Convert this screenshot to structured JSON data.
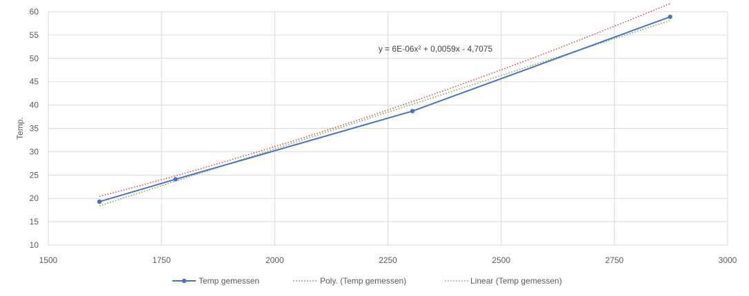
{
  "chart_data": {
    "type": "scatter",
    "title": "",
    "xlabel": "",
    "ylabel": "Temp.",
    "xlim": [
      1500,
      3000
    ],
    "ylim": [
      10,
      60
    ],
    "xticks": [
      1500,
      1750,
      2000,
      2250,
      2500,
      2750,
      3000
    ],
    "yticks": [
      10,
      15,
      20,
      25,
      30,
      35,
      40,
      45,
      50,
      55,
      60
    ],
    "grid": true,
    "legend_position": "bottom",
    "colors": {
      "measured": "#4472c4",
      "poly": "#c0504d",
      "linear": "#70ad47"
    },
    "series": [
      {
        "name": "Temp gemessen",
        "kind": "line-with-markers",
        "x": [
          1613,
          1781,
          2304,
          2873
        ],
        "y": [
          19.3,
          24.1,
          38.7,
          58.9
        ]
      }
    ],
    "trendlines": [
      {
        "name": "Poly. (Temp gemessen)",
        "kind": "polynomial",
        "a": 6e-06,
        "b": 0.0059,
        "c": -4.7075,
        "x_range": [
          1613,
          2873
        ]
      },
      {
        "name": "Linear (Temp gemessen)",
        "kind": "linear",
        "x_range": [
          1613,
          2873
        ],
        "y_range": [
          18.4,
          58.1
        ]
      }
    ],
    "annotations": [
      {
        "text": "y = 6E-06x² + 0,0059x - 4,7075",
        "anchor_x": 2355,
        "anchor_y": 52
      }
    ]
  }
}
